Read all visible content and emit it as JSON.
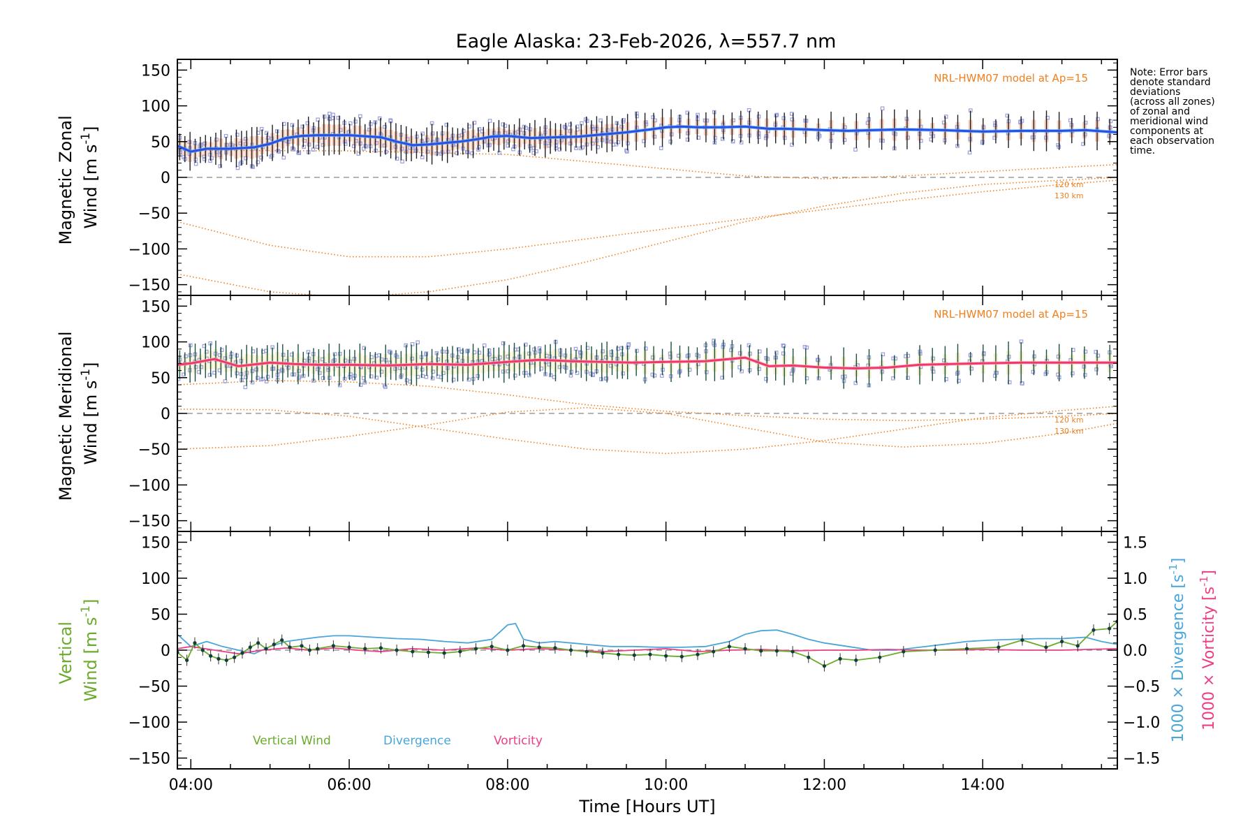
{
  "title": "Eagle Alaska: 23-Feb-2026, λ=557.7 nm",
  "note_lines": [
    "Note: Error bars",
    "denote standard",
    "deviations",
    "(across all zones)",
    "of zonal and",
    "meridional wind",
    "components at",
    "each observation",
    "time."
  ],
  "model_label": "NRL-HWM07 model at Ap=15",
  "model_alt_labels": [
    "120 km",
    "130 km"
  ],
  "colors": {
    "zonal_mean": "#2a4ee6",
    "zonal_light": "#4fb6f2",
    "zonal_error": "#1e1e1e",
    "zonal_shade": "#f3a07a",
    "meridional_mean": "#f0386a",
    "meridional_light": "#ffb3c0",
    "meridional_error": "#1b4f3d",
    "meridional_shade": "#e9e29a",
    "zone_box": "#9aa0dc",
    "model": "#f07f1e",
    "vertical": "#6aab2e",
    "divergence": "#4aa6d8",
    "vorticity": "#ee3d84",
    "dot": "#123d3d"
  },
  "chart_data": [
    {
      "type": "line",
      "title": "",
      "ylabel_lines": [
        "Magnetic Zonal",
        "Wind [m s^-1]"
      ],
      "xlim": [
        3.83,
        15.7
      ],
      "ylim": [
        -165,
        165
      ],
      "yticks": [
        -150,
        -100,
        -50,
        0,
        50,
        100,
        150
      ],
      "zero_line": true,
      "series": [
        {
          "name": "Zonal wind (mean)",
          "x": [
            3.83,
            4.0,
            4.2,
            4.5,
            4.8,
            5.0,
            5.2,
            5.4,
            5.6,
            6.0,
            6.4,
            6.6,
            6.8,
            7.0,
            7.2,
            7.4,
            7.6,
            7.8,
            8.0,
            8.3,
            8.6,
            8.9,
            9.2,
            9.5,
            9.8,
            10.0,
            10.2,
            10.4,
            10.7,
            11.0,
            11.3,
            11.5,
            11.8,
            12.0,
            12.3,
            12.6,
            13.0,
            13.5,
            14.0,
            14.5,
            15.0,
            15.3,
            15.7
          ],
          "values": [
            44,
            36,
            40,
            40,
            42,
            47,
            55,
            58,
            59,
            59,
            56,
            50,
            45,
            46,
            48,
            50,
            53,
            57,
            58,
            55,
            56,
            57,
            60,
            63,
            67,
            70,
            71,
            70,
            70,
            71,
            68,
            68,
            67,
            66,
            65,
            66,
            67,
            66,
            64,
            65,
            65,
            66,
            63
          ]
        },
        {
          "name": "Zonal error",
          "sd": 22
        }
      ],
      "models": [
        {
          "name": "NRL-HWM07 120 km zonal",
          "x": [
            3.83,
            5.0,
            6.0,
            7.0,
            8.0,
            9.0,
            10.0,
            11.0,
            12.0,
            13.0,
            14.0,
            15.0,
            15.7
          ],
          "values": [
            -62,
            -95,
            -111,
            -111,
            -100,
            -86,
            -72,
            -58,
            -45,
            -32,
            -20,
            -10,
            -4
          ]
        },
        {
          "name": "NRL-HWM07 130 km zonal",
          "x": [
            3.83,
            5.0,
            6.0,
            7.0,
            8.0,
            9.0,
            10.0,
            11.0,
            12.0,
            13.0,
            14.0,
            15.0,
            15.7
          ],
          "values": [
            -135,
            -160,
            -168,
            -160,
            -143,
            -118,
            -90,
            -62,
            -40,
            -22,
            -10,
            -4,
            0
          ]
        },
        {
          "name": "NRL-HWM07 upper zonal",
          "x": [
            3.83,
            6.0,
            8.0,
            10.0,
            11.0,
            12.0,
            13.0,
            14.0,
            15.0,
            15.7
          ],
          "values": [
            38,
            37,
            32,
            12,
            2,
            -2,
            2,
            8,
            14,
            18
          ]
        }
      ]
    },
    {
      "type": "line",
      "title": "",
      "ylabel_lines": [
        "Magnetic Meridional",
        "Wind [m s^-1]"
      ],
      "xlim": [
        3.83,
        15.7
      ],
      "ylim": [
        -165,
        165
      ],
      "yticks": [
        -150,
        -100,
        -50,
        0,
        50,
        100,
        150
      ],
      "zero_line": true,
      "series": [
        {
          "name": "Meridional wind (mean)",
          "x": [
            3.83,
            4.0,
            4.3,
            4.6,
            5.0,
            5.3,
            5.6,
            6.0,
            6.5,
            7.0,
            7.5,
            8.0,
            8.4,
            8.8,
            9.2,
            9.6,
            10.0,
            10.5,
            11.0,
            11.3,
            11.6,
            12.0,
            12.4,
            12.8,
            13.2,
            13.6,
            14.0,
            14.5,
            15.0,
            15.7
          ],
          "values": [
            68,
            70,
            76,
            66,
            71,
            69,
            68,
            68,
            67,
            69,
            68,
            72,
            75,
            73,
            72,
            71,
            72,
            73,
            78,
            66,
            67,
            64,
            63,
            64,
            68,
            69,
            70,
            71,
            71,
            71
          ]
        },
        {
          "name": "Meridional error",
          "sd": 23
        }
      ],
      "models": [
        {
          "name": "NRL-HWM07 120 km meridional",
          "x": [
            3.83,
            5.0,
            6.0,
            7.0,
            8.0,
            9.0,
            10.0,
            11.0,
            12.0,
            13.0,
            14.0,
            15.0,
            15.7
          ],
          "values": [
            -50,
            -45,
            -32,
            -16,
            2,
            8,
            0,
            -20,
            -40,
            -47,
            -42,
            -28,
            -14
          ]
        },
        {
          "name": "NRL-HWM07 130 km meridional",
          "x": [
            3.83,
            5.0,
            6.0,
            7.0,
            8.0,
            9.0,
            10.0,
            11.0,
            12.0,
            13.0,
            14.0,
            15.0,
            15.7
          ],
          "values": [
            6,
            5,
            -4,
            -20,
            -36,
            -50,
            -56,
            -50,
            -38,
            -22,
            -6,
            4,
            10
          ]
        },
        {
          "name": "NRL-HWM07 upper meridional",
          "x": [
            3.83,
            5.0,
            6.0,
            7.0,
            8.0,
            9.0,
            10.0,
            10.5,
            11.0,
            12.0,
            13.0,
            14.0,
            15.0,
            15.7
          ],
          "values": [
            40,
            46,
            44,
            38,
            26,
            12,
            3,
            0,
            -3,
            -8,
            -10,
            -8,
            -4,
            0
          ]
        }
      ]
    },
    {
      "type": "line",
      "title": "",
      "ylabel_lines": [
        "Vertical",
        "Wind [m s^-1]"
      ],
      "ylabel_right1": "1000 × Divergence [s^-1]",
      "ylabel_right2": "1000 × Vorticity [s^-1]",
      "xlabel": "Time [Hours UT]",
      "xlim": [
        3.83,
        15.7
      ],
      "xticks": [
        4,
        6,
        8,
        10,
        12,
        14
      ],
      "xtick_labels": [
        "04:00",
        "06:00",
        "08:00",
        "10:00",
        "12:00",
        "14:00"
      ],
      "ylim": [
        -165,
        165
      ],
      "yticks": [
        -150,
        -100,
        -50,
        0,
        50,
        100,
        150
      ],
      "y2lim": [
        -1.65,
        1.65
      ],
      "y2ticks": [
        -1.5,
        -1.0,
        -0.5,
        0.0,
        0.5,
        1.0,
        1.5
      ],
      "y2tick_labels": [
        "−1.5",
        "−1.0",
        "−0.5",
        "0.0",
        "0.5",
        "1.0",
        "1.5"
      ],
      "zero_line": true,
      "legend": [
        "Vertical Wind",
        "Divergence",
        "Vorticity"
      ],
      "series": [
        {
          "name": "Vertical Wind",
          "axis": "left",
          "x": [
            3.83,
            3.95,
            4.05,
            4.15,
            4.25,
            4.35,
            4.45,
            4.55,
            4.65,
            4.75,
            4.85,
            4.95,
            5.05,
            5.15,
            5.25,
            5.4,
            5.5,
            5.6,
            5.8,
            6.0,
            6.2,
            6.4,
            6.6,
            6.8,
            7.0,
            7.2,
            7.4,
            7.6,
            7.8,
            8.0,
            8.2,
            8.4,
            8.6,
            8.8,
            9.0,
            9.2,
            9.4,
            9.6,
            9.8,
            10.0,
            10.2,
            10.4,
            10.6,
            10.8,
            11.0,
            11.2,
            11.4,
            11.6,
            11.8,
            12.0,
            12.2,
            12.4,
            12.7,
            13.0,
            13.4,
            13.8,
            14.2,
            14.5,
            14.8,
            15.0,
            15.2,
            15.4,
            15.6,
            15.7
          ],
          "values": [
            -3,
            -14,
            10,
            0,
            -8,
            -12,
            -14,
            -10,
            -4,
            4,
            10,
            2,
            8,
            14,
            4,
            6,
            0,
            2,
            6,
            4,
            2,
            3,
            0,
            -2,
            -3,
            -4,
            -2,
            2,
            5,
            0,
            6,
            4,
            3,
            0,
            -2,
            -4,
            -6,
            -7,
            -6,
            -8,
            -9,
            -6,
            -2,
            5,
            2,
            -1,
            -1,
            -2,
            -10,
            -22,
            -12,
            -14,
            -10,
            -2,
            0,
            2,
            4,
            14,
            4,
            12,
            6,
            28,
            30,
            40
          ]
        },
        {
          "name": "Divergence",
          "axis": "right",
          "x": [
            3.83,
            4.0,
            4.2,
            4.4,
            4.6,
            4.8,
            5.0,
            5.2,
            5.4,
            5.6,
            5.8,
            6.0,
            6.3,
            6.6,
            6.9,
            7.2,
            7.5,
            7.8,
            8.0,
            8.1,
            8.2,
            8.4,
            8.6,
            8.8,
            9.0,
            9.3,
            9.6,
            9.9,
            10.2,
            10.5,
            10.8,
            11.0,
            11.2,
            11.4,
            11.6,
            11.8,
            12.0,
            12.3,
            12.6,
            12.9,
            13.2,
            13.5,
            13.8,
            14.1,
            14.4,
            14.7,
            15.0,
            15.3,
            15.5,
            15.7
          ],
          "values": [
            0.22,
            0.05,
            0.12,
            0.05,
            0.0,
            -0.05,
            0.05,
            0.12,
            0.15,
            0.18,
            0.2,
            0.2,
            0.18,
            0.16,
            0.15,
            0.12,
            0.1,
            0.15,
            0.35,
            0.37,
            0.15,
            0.1,
            0.12,
            0.1,
            0.08,
            0.05,
            0.05,
            0.04,
            0.04,
            0.05,
            0.12,
            0.22,
            0.27,
            0.28,
            0.22,
            0.15,
            0.1,
            0.05,
            0.0,
            0.0,
            0.04,
            0.08,
            0.12,
            0.14,
            0.15,
            0.16,
            0.16,
            0.18,
            0.12,
            0.08
          ]
        },
        {
          "name": "Vorticity",
          "axis": "right",
          "x": [
            3.83,
            4.0,
            4.3,
            4.6,
            4.9,
            5.2,
            5.5,
            5.8,
            6.1,
            6.4,
            6.8,
            7.2,
            7.6,
            8.0,
            8.4,
            8.8,
            9.2,
            9.6,
            10.0,
            10.4,
            10.8,
            11.2,
            11.6,
            12.0,
            12.4,
            12.8,
            13.2,
            13.6,
            14.0,
            14.5,
            15.0,
            15.7
          ],
          "values": [
            0.02,
            0.05,
            0.0,
            -0.05,
            0.0,
            0.03,
            0.0,
            0.03,
            0.0,
            -0.02,
            0.02,
            0.0,
            0.03,
            0.0,
            0.02,
            0.0,
            -0.02,
            0.0,
            0.02,
            -0.02,
            0.0,
            0.01,
            -0.01,
            0.0,
            0.0,
            0.01,
            0.0,
            0.0,
            0.01,
            0.0,
            0.0,
            0.02
          ]
        }
      ]
    }
  ]
}
